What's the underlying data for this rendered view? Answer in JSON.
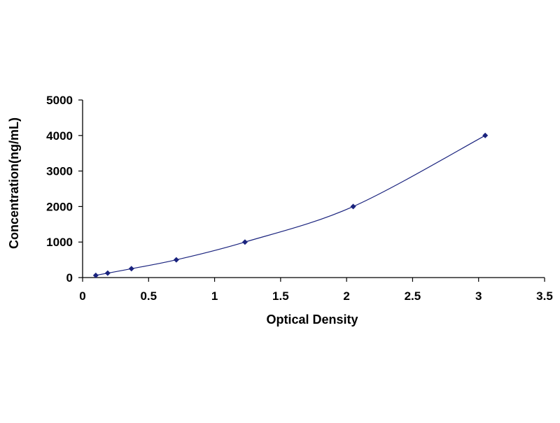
{
  "chart_data": {
    "type": "scatter",
    "xlabel": "Optical Density",
    "ylabel": "Concentration(ng/mL)",
    "xlim": [
      0,
      3.5
    ],
    "ylim": [
      0,
      5000
    ],
    "x_ticks": [
      0,
      0.5,
      1,
      1.5,
      2,
      2.5,
      3,
      3.5
    ],
    "x_tick_labels": [
      "0",
      "0.5",
      "1",
      "1.5",
      "2",
      "2.5",
      "3",
      "3.5"
    ],
    "y_ticks": [
      0,
      1000,
      2000,
      3000,
      4000,
      5000
    ],
    "y_tick_labels": [
      "0",
      "1000",
      "2000",
      "3000",
      "4000",
      "5000"
    ],
    "grid": false,
    "legend": false,
    "trendline": "smooth curve through points",
    "colors": {
      "points": "#1a237e",
      "curve": "#1a237e",
      "axes": "#000000"
    },
    "series": [
      {
        "x": [
          0.1,
          0.19,
          0.37,
          0.71,
          1.23,
          2.05,
          3.05
        ],
        "y": [
          62.5,
          125,
          250,
          500,
          1000,
          2000,
          4000
        ]
      }
    ]
  }
}
